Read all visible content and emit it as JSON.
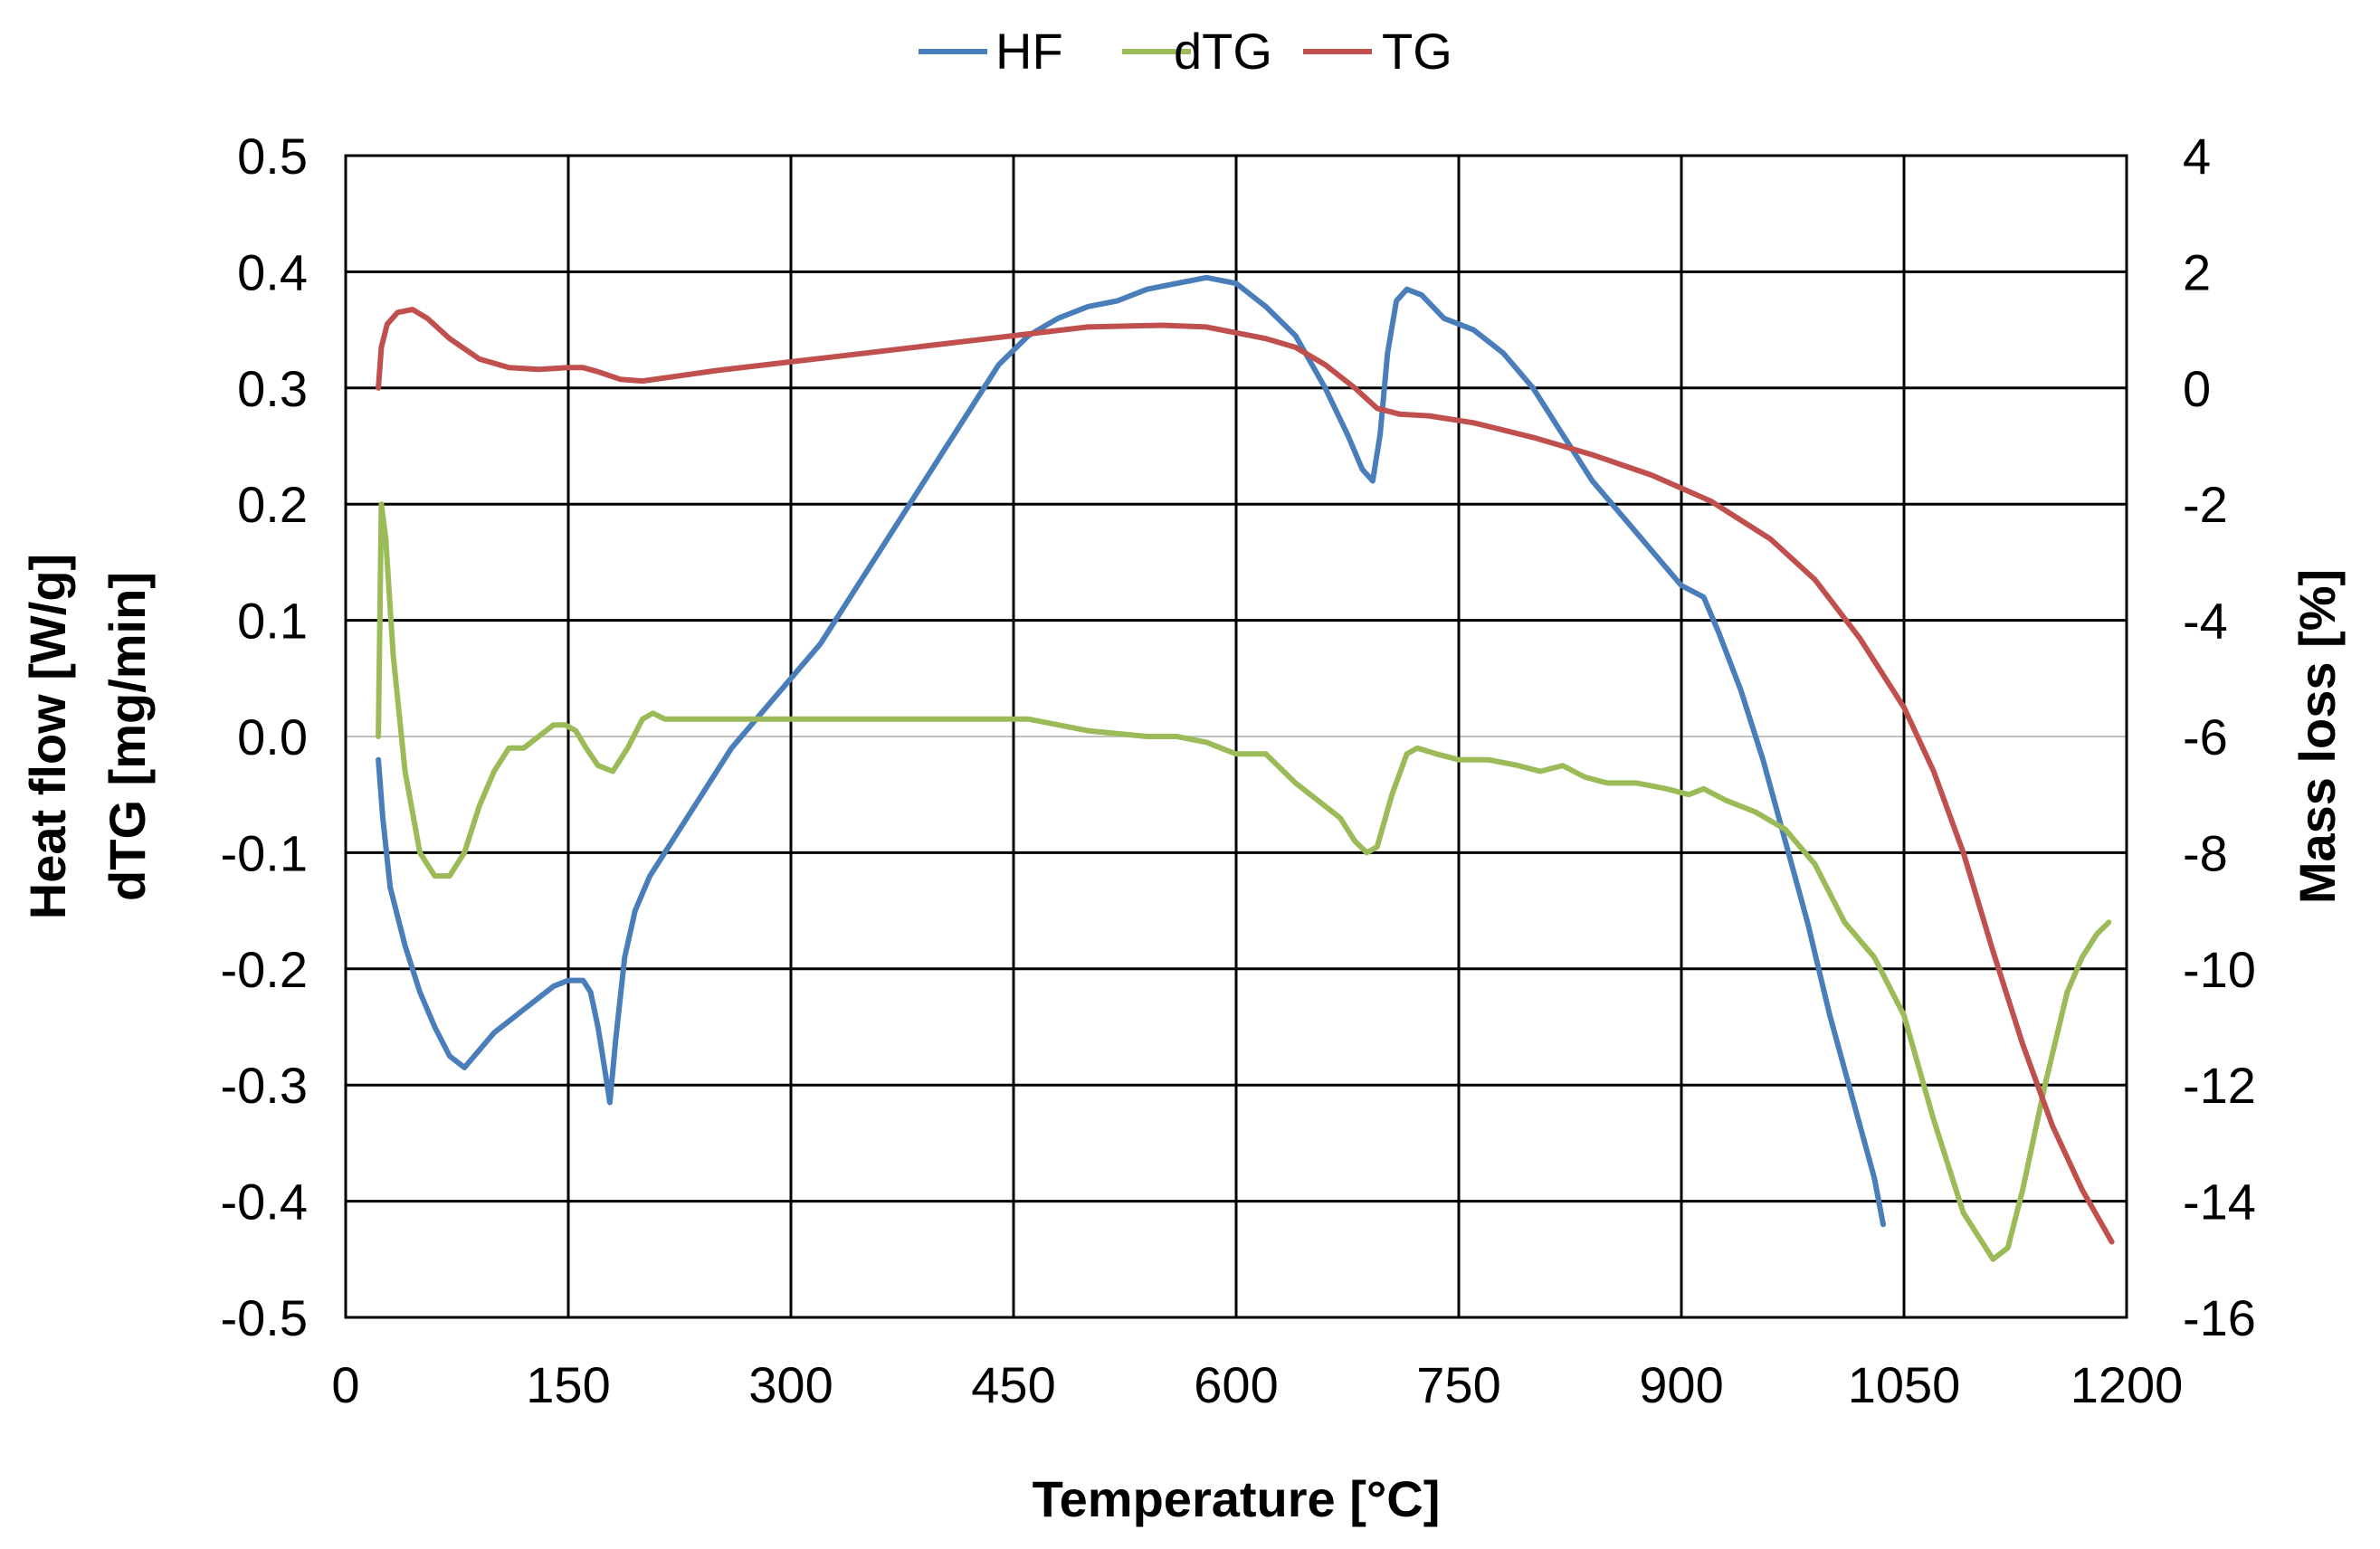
{
  "chart_data": {
    "type": "line",
    "title": "",
    "xlabel": "Temperature [°C]",
    "ylabel_left": [
      "Heat flow [W/g]",
      "dTG [mg/min]"
    ],
    "ylabel_right": "Mass loss [%]",
    "xlim": [
      0,
      1200
    ],
    "ylim_left": [
      -0.5,
      0.5
    ],
    "ylim_right": [
      -16,
      4
    ],
    "x_ticks": [
      0,
      150,
      300,
      450,
      600,
      750,
      900,
      1050,
      1200
    ],
    "x_tick_labels": [
      "0",
      "150",
      "300",
      "450",
      "600",
      "750",
      "900",
      "1050",
      "1200"
    ],
    "y_left_ticks": [
      0.5,
      0.4,
      0.3,
      0.2,
      0.1,
      0.0,
      -0.1,
      -0.2,
      -0.3,
      -0.4,
      -0.5
    ],
    "y_left_tick_labels": [
      "0.5",
      "0.4",
      "0.3",
      "0.2",
      "0.1",
      "0.0",
      "-0.1",
      "-0.2",
      "-0.3",
      "-0.4",
      "-0.5"
    ],
    "y_right_ticks": [
      4,
      2,
      0,
      -2,
      -4,
      -6,
      -8,
      -10,
      -12,
      -14,
      -16
    ],
    "y_right_tick_labels": [
      "4",
      "2",
      "0",
      "-2",
      "-4",
      "-6",
      "-8",
      "-10",
      "-12",
      "-14",
      "-16"
    ],
    "grid": true,
    "legend_position": "top-center",
    "series": [
      {
        "name": "HF",
        "axis": "left",
        "color": "#4a7ebb",
        "x": [
          22,
          25,
          30,
          40,
          50,
          60,
          70,
          80,
          90,
          100,
          110,
          120,
          130,
          140,
          150,
          160,
          165,
          170,
          175,
          178,
          182,
          188,
          195,
          205,
          220,
          240,
          260,
          280,
          300,
          320,
          340,
          360,
          380,
          400,
          420,
          440,
          460,
          480,
          500,
          520,
          540,
          560,
          580,
          600,
          620,
          640,
          660,
          675,
          685,
          692,
          697,
          702,
          708,
          715,
          725,
          740,
          760,
          780,
          800,
          820,
          840,
          860,
          880,
          900,
          915,
          925,
          940,
          955,
          970,
          985,
          1000,
          1015,
          1030,
          1036
        ],
        "values": [
          -0.02,
          -0.07,
          -0.13,
          -0.18,
          -0.22,
          -0.25,
          -0.275,
          -0.285,
          -0.27,
          -0.255,
          -0.245,
          -0.235,
          -0.225,
          -0.215,
          -0.21,
          -0.21,
          -0.22,
          -0.25,
          -0.29,
          -0.315,
          -0.26,
          -0.19,
          -0.15,
          -0.12,
          -0.09,
          -0.05,
          -0.01,
          0.02,
          0.05,
          0.08,
          0.12,
          0.16,
          0.2,
          0.24,
          0.28,
          0.32,
          0.345,
          0.36,
          0.37,
          0.375,
          0.385,
          0.39,
          0.395,
          0.39,
          0.37,
          0.345,
          0.3,
          0.26,
          0.23,
          0.22,
          0.26,
          0.33,
          0.375,
          0.385,
          0.38,
          0.36,
          0.35,
          0.33,
          0.3,
          0.26,
          0.22,
          0.19,
          0.16,
          0.13,
          0.12,
          0.09,
          0.04,
          -0.02,
          -0.09,
          -0.16,
          -0.24,
          -0.31,
          -0.38,
          -0.42
        ]
      },
      {
        "name": "dTG",
        "axis": "left",
        "color": "#9bbb59",
        "x": [
          22,
          24,
          27,
          32,
          40,
          50,
          60,
          70,
          80,
          90,
          100,
          110,
          120,
          130,
          140,
          148,
          155,
          162,
          170,
          180,
          190,
          200,
          207,
          215,
          230,
          300,
          400,
          460,
          500,
          540,
          560,
          580,
          600,
          610,
          620,
          640,
          660,
          670,
          680,
          688,
          695,
          705,
          715,
          722,
          735,
          750,
          770,
          790,
          805,
          820,
          835,
          850,
          870,
          890,
          905,
          915,
          930,
          950,
          970,
          990,
          1010,
          1030,
          1050,
          1070,
          1090,
          1110,
          1120,
          1130,
          1145,
          1160,
          1170,
          1180,
          1188
        ],
        "values": [
          0.0,
          0.2,
          0.17,
          0.07,
          -0.03,
          -0.1,
          -0.12,
          -0.12,
          -0.1,
          -0.06,
          -0.03,
          -0.01,
          -0.01,
          0.0,
          0.01,
          0.01,
          0.005,
          -0.01,
          -0.025,
          -0.03,
          -0.01,
          0.015,
          0.02,
          0.015,
          0.015,
          0.015,
          0.015,
          0.015,
          0.005,
          0.0,
          0.0,
          -0.005,
          -0.015,
          -0.015,
          -0.015,
          -0.04,
          -0.06,
          -0.07,
          -0.09,
          -0.1,
          -0.095,
          -0.05,
          -0.015,
          -0.01,
          -0.015,
          -0.02,
          -0.02,
          -0.025,
          -0.03,
          -0.025,
          -0.035,
          -0.04,
          -0.04,
          -0.045,
          -0.05,
          -0.045,
          -0.055,
          -0.065,
          -0.08,
          -0.11,
          -0.16,
          -0.19,
          -0.24,
          -0.33,
          -0.41,
          -0.45,
          -0.44,
          -0.39,
          -0.3,
          -0.22,
          -0.19,
          -0.17,
          -0.16
        ]
      },
      {
        "name": "TG",
        "axis": "right",
        "color": "#c0504d",
        "x": [
          22,
          24,
          28,
          35,
          45,
          55,
          70,
          90,
          110,
          130,
          150,
          160,
          170,
          185,
          200,
          250,
          300,
          350,
          400,
          450,
          500,
          550,
          580,
          600,
          620,
          640,
          660,
          680,
          695,
          710,
          730,
          760,
          800,
          840,
          880,
          920,
          960,
          990,
          1020,
          1050,
          1070,
          1090,
          1110,
          1130,
          1150,
          1170,
          1190
        ],
        "values": [
          0,
          0.7,
          1.1,
          1.3,
          1.35,
          1.2,
          0.85,
          0.5,
          0.35,
          0.32,
          0.35,
          0.35,
          0.28,
          0.15,
          0.12,
          0.3,
          0.45,
          0.6,
          0.75,
          0.9,
          1.05,
          1.08,
          1.05,
          0.95,
          0.85,
          0.7,
          0.4,
          0.0,
          -0.35,
          -0.45,
          -0.48,
          -0.6,
          -0.85,
          -1.15,
          -1.5,
          -1.95,
          -2.6,
          -3.3,
          -4.3,
          -5.5,
          -6.6,
          -8.0,
          -9.7,
          -11.3,
          -12.7,
          -13.8,
          -14.7
        ]
      }
    ]
  }
}
